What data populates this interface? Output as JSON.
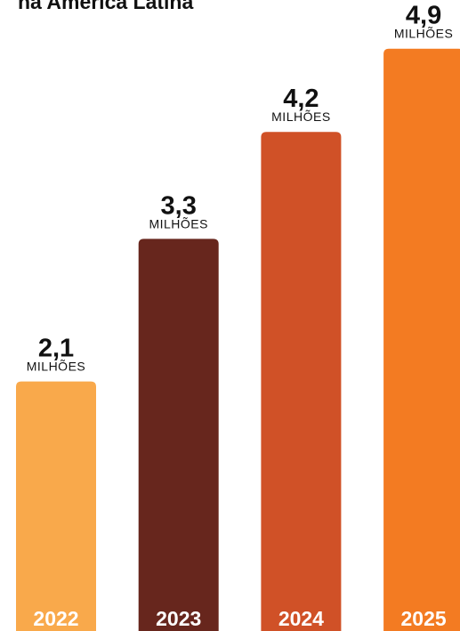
{
  "header": {
    "title_fragment": "na América Latina"
  },
  "chart_data": {
    "type": "bar",
    "categories": [
      "2022",
      "2023",
      "2024",
      "2025"
    ],
    "values": [
      2.1,
      3.3,
      4.2,
      4.9
    ],
    "value_labels": [
      "2,1",
      "3,3",
      "4,2",
      "4,9"
    ],
    "unit_label": "MILHÕES",
    "colors": [
      "#f9a94b",
      "#67261d",
      "#d05127",
      "#f37b22"
    ],
    "ylim": [
      0,
      5.31
    ],
    "grid": false,
    "legend": "none"
  }
}
